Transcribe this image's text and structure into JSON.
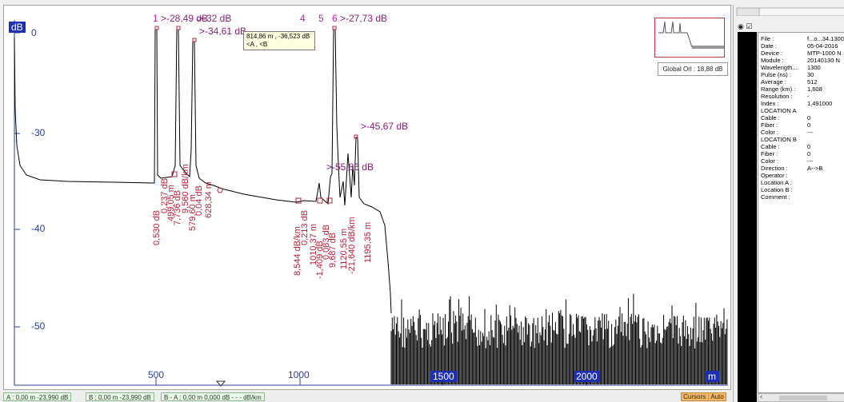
{
  "trace": {
    "db_label": "dB",
    "m_label": "m",
    "y_ticks": [
      "-30",
      "-40",
      "-50"
    ],
    "y_tick_top": "0",
    "x_ticks": [
      "500",
      "1000",
      "1500",
      "2000"
    ],
    "events": {
      "num1": "1",
      "num4": "4",
      "num5": "5",
      "num6": "6",
      "top_left": ">-28,49 dB",
      "top_mid": ">-32 dB",
      "top_right": ">-27,73 dB",
      "peak3": ">-34,61 dB",
      "right_peak": ">-45,67 dB",
      "mid_right": ">-55,86 dB"
    },
    "vertical_labels": [
      "0,530 dB",
      "0,237 dB",
      "499,05 m",
      "7,736 dB",
      "9,560 dB/km",
      "579,60 m",
      "0,04 dB",
      "628,34 m",
      "8,544 dB/km",
      "0,213 dB",
      "1010,37 m",
      "-1,409 dB",
      "0,083 dB",
      "9,687 dB",
      "1120,55 m",
      "-21,640 dB/km",
      "1195,35 m"
    ]
  },
  "tooltip": {
    "line1": "814,86 m , -36,523 dB",
    "line2": "<A , <B"
  },
  "global_orl": "Global Orl : 18,88 dB",
  "status": {
    "a": "A : 0,00 m  -23,990 dB",
    "b": "B : 0,00 m  -23,990 dB",
    "ba": "B - A : 0,00 m   0,000 dB - - - dB/km",
    "cursors": "Cursors : Auto"
  },
  "properties": [
    {
      "k": "File :",
      "v": "f...o...34.1300"
    },
    {
      "k": "Date :",
      "v": "05-04-2016"
    },
    {
      "k": "Device :",
      "v": "MTP-1000 N"
    },
    {
      "k": "Module :",
      "v": "20140130 N"
    },
    {
      "k": "Wavelength...",
      "v": "1300"
    },
    {
      "k": "Pulse (ns) :",
      "v": "30"
    },
    {
      "k": "Average :",
      "v": "512"
    },
    {
      "k": "Range (km) :",
      "v": "1,608"
    },
    {
      "k": "Resolution :",
      "v": "-"
    },
    {
      "k": "Index :",
      "v": "1,491000"
    },
    {
      "k": "LOCATION A",
      "v": ""
    },
    {
      "k": "   Cable :",
      "v": "0"
    },
    {
      "k": "   Fiber :",
      "v": "0"
    },
    {
      "k": "   Color :",
      "v": "---"
    },
    {
      "k": "LOCATION B",
      "v": ""
    },
    {
      "k": "   Cable :",
      "v": "0"
    },
    {
      "k": "   Fiber :",
      "v": "0"
    },
    {
      "k": "   Color :",
      "v": "---"
    },
    {
      "k": "Direction :",
      "v": "A-->B"
    },
    {
      "k": "Operator :",
      "v": ""
    },
    {
      "k": "Location A :",
      "v": ""
    },
    {
      "k": "Location B :",
      "v": ""
    },
    {
      "k": "Comment :",
      "v": ""
    }
  ],
  "colors": {
    "trace": "#000000",
    "axis_label": "#2a3d9a",
    "event_text": "#8b1f7a",
    "marker": "#b8243a",
    "badge": "#1f2fb5"
  }
}
